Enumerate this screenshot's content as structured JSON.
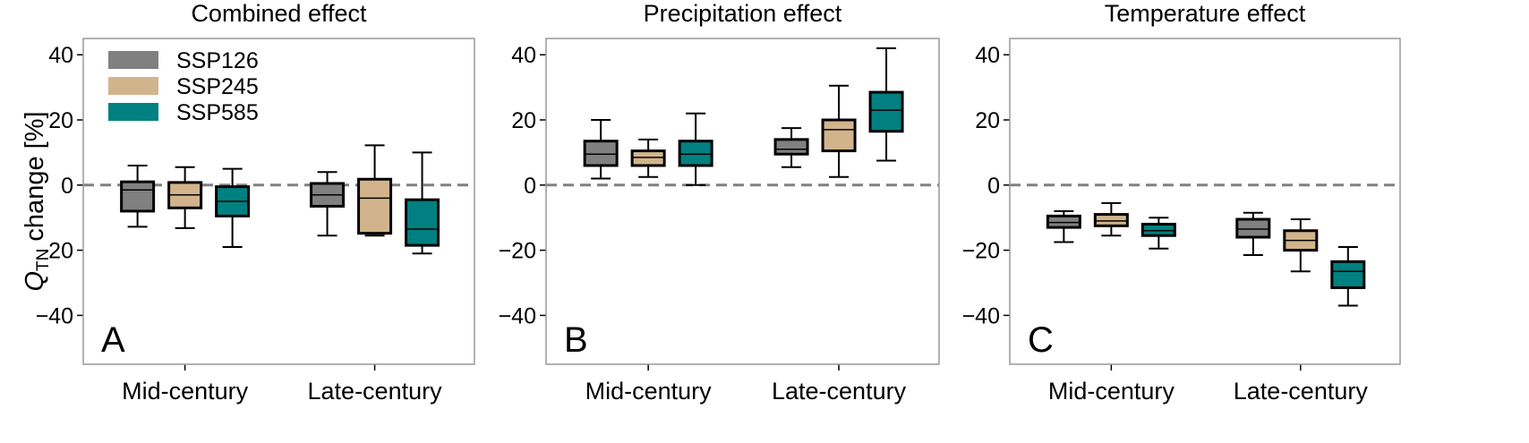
{
  "chart_data": {
    "type": "boxplot",
    "ylabel": "change [%]",
    "ylabel_symbol": "Q",
    "ylabel_subscript": "TN",
    "ylim": [
      -55,
      45
    ],
    "yticks": [
      -40,
      -20,
      0,
      20,
      40
    ],
    "ytick_labels": [
      "−40",
      "−20",
      "0",
      "20",
      "40"
    ],
    "categories": [
      "Mid-century",
      "Late-century"
    ],
    "reference_line": 0,
    "legend": [
      {
        "name": "SSP126",
        "color": "#808080"
      },
      {
        "name": "SSP245",
        "color": "#d2b48c"
      },
      {
        "name": "SSP585",
        "color": "#008080"
      }
    ],
    "panels": [
      {
        "letter": "A",
        "title": "Combined effect",
        "show_legend": true,
        "groups": [
          {
            "category": "Mid-century",
            "boxes": [
              {
                "series": "SSP126",
                "whislo": -12.8,
                "q1": -8,
                "median": -1.5,
                "q3": 1,
                "whishi": 6
              },
              {
                "series": "SSP245",
                "whislo": -13.2,
                "q1": -7,
                "median": -3,
                "q3": 0.8,
                "whishi": 5.5
              },
              {
                "series": "SSP585",
                "whislo": -19,
                "q1": -9.5,
                "median": -5,
                "q3": -0.5,
                "whishi": 5
              }
            ]
          },
          {
            "category": "Late-century",
            "boxes": [
              {
                "series": "SSP126",
                "whislo": -15.5,
                "q1": -6.5,
                "median": -3,
                "q3": 0.5,
                "whishi": 4
              },
              {
                "series": "SSP245",
                "whislo": -15.5,
                "q1": -14.8,
                "median": -4,
                "q3": 1.8,
                "whishi": 12.2
              },
              {
                "series": "SSP585",
                "whislo": -21,
                "q1": -18.5,
                "median": -13.5,
                "q3": -4.5,
                "whishi": 10
              }
            ]
          }
        ]
      },
      {
        "letter": "B",
        "title": "Precipitation effect",
        "show_legend": false,
        "groups": [
          {
            "category": "Mid-century",
            "boxes": [
              {
                "series": "SSP126",
                "whislo": 2,
                "q1": 6,
                "median": 9.5,
                "q3": 13.5,
                "whishi": 20
              },
              {
                "series": "SSP245",
                "whislo": 2.5,
                "q1": 6,
                "median": 8.5,
                "q3": 10.5,
                "whishi": 14
              },
              {
                "series": "SSP585",
                "whislo": 0,
                "q1": 6,
                "median": 9.5,
                "q3": 13.5,
                "whishi": 22
              }
            ]
          },
          {
            "category": "Late-century",
            "boxes": [
              {
                "series": "SSP126",
                "whislo": 5.5,
                "q1": 9.5,
                "median": 11,
                "q3": 14,
                "whishi": 17.5
              },
              {
                "series": "SSP245",
                "whislo": 2.5,
                "q1": 10.5,
                "median": 17,
                "q3": 20,
                "whishi": 30.5
              },
              {
                "series": "SSP585",
                "whislo": 7.5,
                "q1": 16.5,
                "median": 23,
                "q3": 28.5,
                "whishi": 42
              }
            ]
          }
        ]
      },
      {
        "letter": "C",
        "title": "Temperature effect",
        "show_legend": false,
        "groups": [
          {
            "category": "Mid-century",
            "boxes": [
              {
                "series": "SSP126",
                "whislo": -17.5,
                "q1": -13,
                "median": -11.5,
                "q3": -9.5,
                "whishi": -8
              },
              {
                "series": "SSP245",
                "whislo": -15.5,
                "q1": -12.5,
                "median": -11,
                "q3": -9,
                "whishi": -5.5
              },
              {
                "series": "SSP585",
                "whislo": -19.5,
                "q1": -15.5,
                "median": -14,
                "q3": -12,
                "whishi": -10
              }
            ]
          },
          {
            "category": "Late-century",
            "boxes": [
              {
                "series": "SSP126",
                "whislo": -21.5,
                "q1": -16,
                "median": -13.5,
                "q3": -10.5,
                "whishi": -8.5
              },
              {
                "series": "SSP245",
                "whislo": -26.5,
                "q1": -20,
                "median": -17,
                "q3": -14,
                "whishi": -10.5
              },
              {
                "series": "SSP585",
                "whislo": -37,
                "q1": -31.5,
                "median": -26.5,
                "q3": -23.5,
                "whishi": -19
              }
            ]
          }
        ]
      }
    ]
  }
}
